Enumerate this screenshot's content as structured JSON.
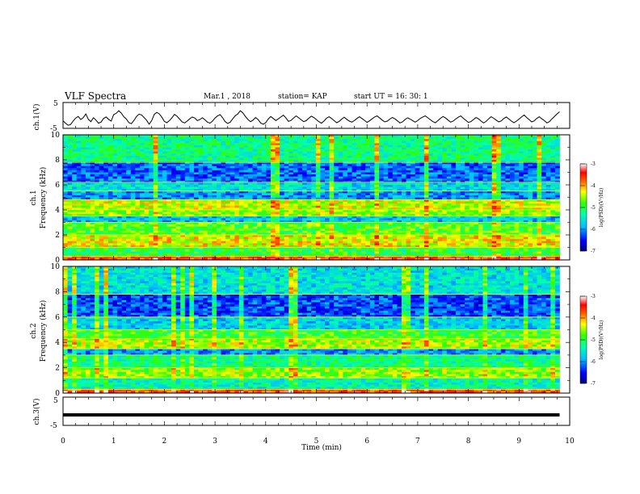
{
  "header": {
    "title": "VLF Spectra",
    "date": "Mar.1 , 2018",
    "station": "station= KAP",
    "start": "start UT = 16: 30: 1"
  },
  "chart_data": [
    {
      "type": "line",
      "id": "ch1_waveform",
      "ylabel": "ch.1(V)",
      "ylim": [
        -5,
        5
      ],
      "yticks": [
        "5",
        "-5"
      ],
      "xlim": [
        0,
        10
      ],
      "color": "#000000",
      "note_values": "approximate envelope, one sample per 0.05 min",
      "x": [
        0.0,
        0.05,
        0.1,
        0.15,
        0.2,
        0.25,
        0.3,
        0.35,
        0.4,
        0.45,
        0.5,
        0.55,
        0.6,
        0.65,
        0.7,
        0.75,
        0.8,
        0.85,
        0.9,
        0.95,
        1.0,
        1.05,
        1.1,
        1.15,
        1.2,
        1.25,
        1.3,
        1.35,
        1.4,
        1.45,
        1.5,
        1.55,
        1.6,
        1.65,
        1.7,
        1.75,
        1.8,
        1.85,
        1.9,
        1.95,
        2.0,
        2.05,
        2.1,
        2.15,
        2.2,
        2.25,
        2.3,
        2.35,
        2.4,
        2.45,
        2.5,
        2.55,
        2.6,
        2.65,
        2.7,
        2.75,
        2.8,
        2.85,
        2.9,
        2.95,
        3.0,
        3.05,
        3.1,
        3.15,
        3.2,
        3.25,
        3.3,
        3.35,
        3.4,
        3.45,
        3.5,
        3.55,
        3.6,
        3.65,
        3.7,
        3.75,
        3.8,
        3.85,
        3.9,
        3.95,
        4.0,
        4.05,
        4.1,
        4.15,
        4.2,
        4.25,
        4.3,
        4.35,
        4.4,
        4.45,
        4.5,
        4.55,
        4.6,
        4.65,
        4.7,
        4.75,
        4.8,
        4.85,
        4.9,
        4.95,
        5.0,
        5.05,
        5.1,
        5.15,
        5.2,
        5.25,
        5.3,
        5.35,
        5.4,
        5.45,
        5.5,
        5.55,
        5.6,
        5.65,
        5.7,
        5.75,
        5.8,
        5.85,
        5.9,
        5.95,
        6.0,
        6.05,
        6.1,
        6.15,
        6.2,
        6.25,
        6.3,
        6.35,
        6.4,
        6.45,
        6.5,
        6.55,
        6.6,
        6.65,
        6.7,
        6.75,
        6.8,
        6.85,
        6.9,
        6.95,
        7.0,
        7.05,
        7.1,
        7.15,
        7.2,
        7.25,
        7.3,
        7.35,
        7.4,
        7.45,
        7.5,
        7.55,
        7.6,
        7.65,
        7.7,
        7.75,
        7.8,
        7.85,
        7.9,
        7.95,
        8.0,
        8.05,
        8.1,
        8.15,
        8.2,
        8.25,
        8.3,
        8.35,
        8.4,
        8.45,
        8.5,
        8.55,
        8.6,
        8.65,
        8.7,
        8.75,
        8.8,
        8.85,
        8.9,
        8.95,
        9.0,
        9.05,
        9.1,
        9.15,
        9.2,
        9.25,
        9.3,
        9.35,
        9.4,
        9.45,
        9.5,
        9.55,
        9.6,
        9.65,
        9.7,
        9.75,
        9.8
      ],
      "y": [
        -2.1,
        -3.0,
        -3.8,
        -3.5,
        -2.2,
        -1.0,
        -0.4,
        -1.6,
        -0.8,
        0.6,
        -1.5,
        -2.4,
        -0.9,
        -1.8,
        -3.0,
        -2.6,
        -1.2,
        -0.6,
        -1.5,
        -2.2,
        0.3,
        0.8,
        1.8,
        0.9,
        -0.5,
        -1.4,
        -2.8,
        -3.2,
        -1.9,
        -0.4,
        0.5,
        0.2,
        -0.8,
        -1.9,
        -3.4,
        -2.0,
        0.4,
        1.2,
        0.6,
        -0.7,
        -2.3,
        -2.8,
        -2.0,
        -0.9,
        0.4,
        -0.3,
        -1.4,
        -2.5,
        -2.9,
        -2.2,
        -1.3,
        -0.6,
        -1.0,
        -2.0,
        -1.6,
        -0.9,
        -1.7,
        -2.6,
        -3.0,
        -2.2,
        -1.0,
        -0.2,
        0.3,
        -0.9,
        -2.4,
        -3.1,
        -2.6,
        -1.3,
        -0.1,
        0.6,
        1.8,
        1.0,
        -0.4,
        -1.6,
        -2.4,
        -1.8,
        -0.8,
        -1.6,
        -2.9,
        -3.4,
        -2.8,
        -1.4,
        -0.4,
        -1.2,
        -2.0,
        -1.3,
        -0.6,
        0.1,
        -1.0,
        -2.3,
        -1.9,
        -1.0,
        -0.2,
        -0.9,
        -1.7,
        -2.4,
        -2.0,
        -1.1,
        -0.3,
        -0.8,
        -1.6,
        -2.4,
        -3.0,
        -2.2,
        -1.1,
        -0.5,
        -1.2,
        -2.0,
        -2.8,
        -2.3,
        -1.4,
        -0.7,
        -1.5,
        -2.2,
        -2.6,
        -2.0,
        -1.2,
        -0.5,
        -1.2,
        -1.9,
        -2.7,
        -2.1,
        -1.3,
        -0.6,
        -0.2,
        -1.0,
        -1.8,
        -2.5,
        -2.2,
        -1.4,
        -0.8,
        -1.3,
        -2.1,
        -2.9,
        -2.5,
        -1.6,
        -0.9,
        -1.4,
        -2.0,
        -2.6,
        -2.0,
        -1.2,
        -0.6,
        -0.2,
        -0.9,
        -1.7,
        -2.4,
        -2.8,
        -2.0,
        -1.1,
        -0.4,
        -1.0,
        -1.8,
        -2.6,
        -2.2,
        -1.4,
        -0.7,
        -0.2,
        -1.1,
        -1.9,
        -2.7,
        -2.4,
        -1.6,
        -0.8,
        -1.3,
        -2.2,
        -2.9,
        -2.3,
        -1.3,
        -0.5,
        -1.1,
        -1.8,
        -2.5,
        -2.1,
        -1.2,
        -0.6,
        -1.4,
        -2.2,
        -2.8,
        -2.2,
        -1.4,
        -0.6,
        0.2,
        -0.8,
        -1.6,
        -2.5,
        -2.1,
        -1.2,
        -0.5,
        -1.3,
        -2.0,
        -2.9,
        -2.4,
        -1.3,
        -0.4,
        0.6,
        1.4
      ]
    },
    {
      "type": "heatmap",
      "id": "ch1_spectrogram",
      "ylabel": "Frequency (kHz)",
      "side_label": "ch.1",
      "xlim": [
        0,
        10
      ],
      "ylim": [
        0,
        10
      ],
      "yticks": [
        "0",
        "2",
        "4",
        "6",
        "8",
        "10"
      ],
      "colorbar": {
        "label": "log(PSD)(V²/Hz)",
        "range": [
          -7,
          -3
        ],
        "ticks": [
          "-3",
          "-4",
          "-5",
          "-6",
          "-7"
        ]
      },
      "note_values": "approximate log(PSD) per frequency band (kHz)",
      "bands": [
        {
          "f": [
            0.0,
            0.3
          ],
          "level": -3.6
        },
        {
          "f": [
            0.3,
            1.0
          ],
          "level": -5.0
        },
        {
          "f": [
            1.0,
            2.0
          ],
          "level": -4.3
        },
        {
          "f": [
            2.0,
            3.0
          ],
          "level": -4.8
        },
        {
          "f": [
            3.0,
            3.5
          ],
          "level": -5.8
        },
        {
          "f": [
            3.5,
            4.0
          ],
          "level": -4.6
        },
        {
          "f": [
            4.0,
            4.8
          ],
          "level": -4.4
        },
        {
          "f": [
            4.8,
            5.5
          ],
          "level": -6.0
        },
        {
          "f": [
            5.5,
            6.2
          ],
          "level": -5.6
        },
        {
          "f": [
            6.2,
            7.8
          ],
          "level": -6.2
        },
        {
          "f": [
            7.8,
            10.0
          ],
          "level": -5.2
        }
      ]
    },
    {
      "type": "heatmap",
      "id": "ch2_spectrogram",
      "ylabel": "Frequency (kHz)",
      "side_label": "ch.2",
      "xlim": [
        0,
        10
      ],
      "ylim": [
        0,
        10
      ],
      "yticks": [
        "0",
        "2",
        "4",
        "6",
        "8",
        "10"
      ],
      "colorbar": {
        "label": "log(PSD)(V²/Hz)",
        "range": [
          -7,
          -3
        ],
        "ticks": [
          "-3",
          "-4",
          "-5",
          "-6",
          "-7"
        ]
      },
      "note_values": "approximate log(PSD) per frequency band (kHz)",
      "bands": [
        {
          "f": [
            0.0,
            0.3
          ],
          "level": -3.6
        },
        {
          "f": [
            0.3,
            1.2
          ],
          "level": -5.4
        },
        {
          "f": [
            1.2,
            2.0
          ],
          "level": -4.6
        },
        {
          "f": [
            2.0,
            3.0
          ],
          "level": -5.2
        },
        {
          "f": [
            3.0,
            3.5
          ],
          "level": -6.0
        },
        {
          "f": [
            3.5,
            4.3
          ],
          "level": -4.5
        },
        {
          "f": [
            4.3,
            5.0
          ],
          "level": -4.9
        },
        {
          "f": [
            5.0,
            6.0
          ],
          "level": -5.7
        },
        {
          "f": [
            6.0,
            7.8
          ],
          "level": -6.3
        },
        {
          "f": [
            7.8,
            10.0
          ],
          "level": -5.6
        }
      ]
    },
    {
      "type": "line",
      "id": "ch3_waveform",
      "ylabel": "ch.3(V)",
      "ylim": [
        -5,
        5
      ],
      "yticks": [
        "5",
        "-5"
      ],
      "xlim": [
        0,
        10
      ],
      "xlabel": "Time (min)",
      "xticks": [
        "0",
        "1",
        "2",
        "3",
        "4",
        "5",
        "6",
        "7",
        "8",
        "9",
        "10"
      ],
      "color": "#000000",
      "x": [
        0,
        9.8
      ],
      "y": [
        -1.3,
        -1.3
      ]
    }
  ]
}
